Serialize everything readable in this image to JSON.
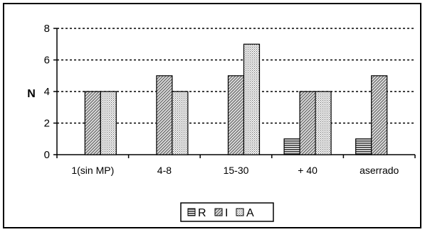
{
  "chart_data": {
    "type": "bar",
    "title": "",
    "xlabel": "",
    "ylabel": "N",
    "ylim": [
      0,
      8
    ],
    "yticks": [
      0,
      2,
      4,
      6,
      8
    ],
    "grid": "horizontal dotted",
    "legend_position": "bottom-center",
    "categories": [
      "1(sin MP)",
      "4-8",
      "15-30",
      "+ 40",
      "aserrado"
    ],
    "series": [
      {
        "name": "R",
        "pattern": "horizontal-lines",
        "values": [
          0,
          0,
          0,
          1,
          1
        ]
      },
      {
        "name": "I",
        "pattern": "diagonal-hatch",
        "values": [
          4,
          5,
          5,
          4,
          5
        ]
      },
      {
        "name": "A",
        "pattern": "dots",
        "values": [
          4,
          4,
          7,
          4,
          0
        ]
      }
    ]
  },
  "colors": {
    "axis": "#000000",
    "bar_fill": "#d0d0d0",
    "background": "#ffffff"
  }
}
